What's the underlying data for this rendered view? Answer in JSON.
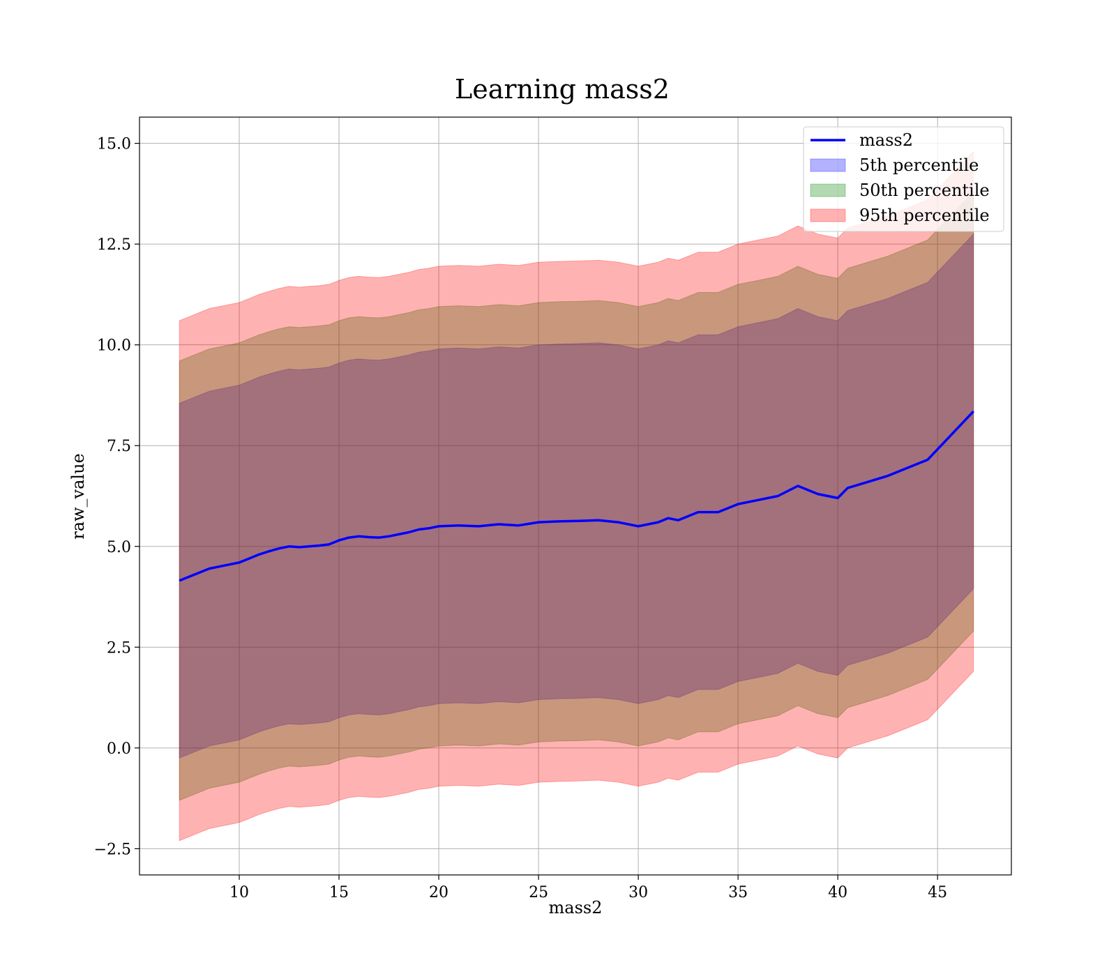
{
  "chart_data": {
    "type": "area",
    "title": "Learning mass2",
    "xlabel": "mass2",
    "ylabel": "raw_value",
    "xlim": [
      5.0,
      48.7
    ],
    "ylim": [
      -3.15,
      15.65
    ],
    "xticks": [
      10,
      15,
      20,
      25,
      30,
      35,
      40,
      45
    ],
    "xtick_labels": [
      "10",
      "15",
      "20",
      "25",
      "30",
      "35",
      "40",
      "45"
    ],
    "yticks": [
      -2.5,
      0.0,
      2.5,
      5.0,
      7.5,
      10.0,
      12.5,
      15.0
    ],
    "ytick_labels": [
      "−2.5",
      "0.0",
      "2.5",
      "5.0",
      "7.5",
      "10.0",
      "12.5",
      "15.0"
    ],
    "grid": true,
    "legend_position": "top-right",
    "legend": [
      {
        "label": "mass2",
        "kind": "line",
        "color": "#0000ff"
      },
      {
        "label": "5th percentile",
        "kind": "patch",
        "color": "#0000ff"
      },
      {
        "label": "50th percentile",
        "kind": "patch",
        "color": "#008000"
      },
      {
        "label": "95th percentile",
        "kind": "patch",
        "color": "#ff0000"
      }
    ],
    "x": [
      7.0,
      7.5,
      8.0,
      8.5,
      9.0,
      9.5,
      10.0,
      10.5,
      11.0,
      11.5,
      12.0,
      12.5,
      13.0,
      13.5,
      14.0,
      14.5,
      15.0,
      15.5,
      16.0,
      16.5,
      17.0,
      17.5,
      18.0,
      18.5,
      19.0,
      19.5,
      20.0,
      21.0,
      22.0,
      23.0,
      24.0,
      25.0,
      26.0,
      27.0,
      28.0,
      29.0,
      30.0,
      30.5,
      31.0,
      31.5,
      32.0,
      33.0,
      34.0,
      35.0,
      36.0,
      37.0,
      38.0,
      39.0,
      40.0,
      40.5,
      41.5,
      42.5,
      43.5,
      44.5,
      46.8
    ],
    "series": [
      {
        "name": "mass2",
        "style": "line",
        "color": "#0000ff",
        "values": [
          4.15,
          4.25,
          4.35,
          4.45,
          4.5,
          4.55,
          4.6,
          4.7,
          4.8,
          4.88,
          4.95,
          5.0,
          4.98,
          5.0,
          5.02,
          5.05,
          5.15,
          5.22,
          5.25,
          5.23,
          5.22,
          5.25,
          5.3,
          5.35,
          5.42,
          5.45,
          5.5,
          5.52,
          5.5,
          5.55,
          5.52,
          5.6,
          5.62,
          5.63,
          5.65,
          5.6,
          5.5,
          5.55,
          5.6,
          5.7,
          5.65,
          5.85,
          5.85,
          6.05,
          6.15,
          6.25,
          6.5,
          6.3,
          6.2,
          6.45,
          6.6,
          6.75,
          6.95,
          7.15,
          8.35
        ]
      },
      {
        "name": "5th percentile",
        "style": "band",
        "color": "#0000ff",
        "offset": 4.4
      },
      {
        "name": "50th percentile",
        "style": "band",
        "color": "#008000",
        "offset": 5.45
      },
      {
        "name": "95th percentile",
        "style": "band",
        "color": "#ff0000",
        "offset": 6.45
      }
    ]
  }
}
